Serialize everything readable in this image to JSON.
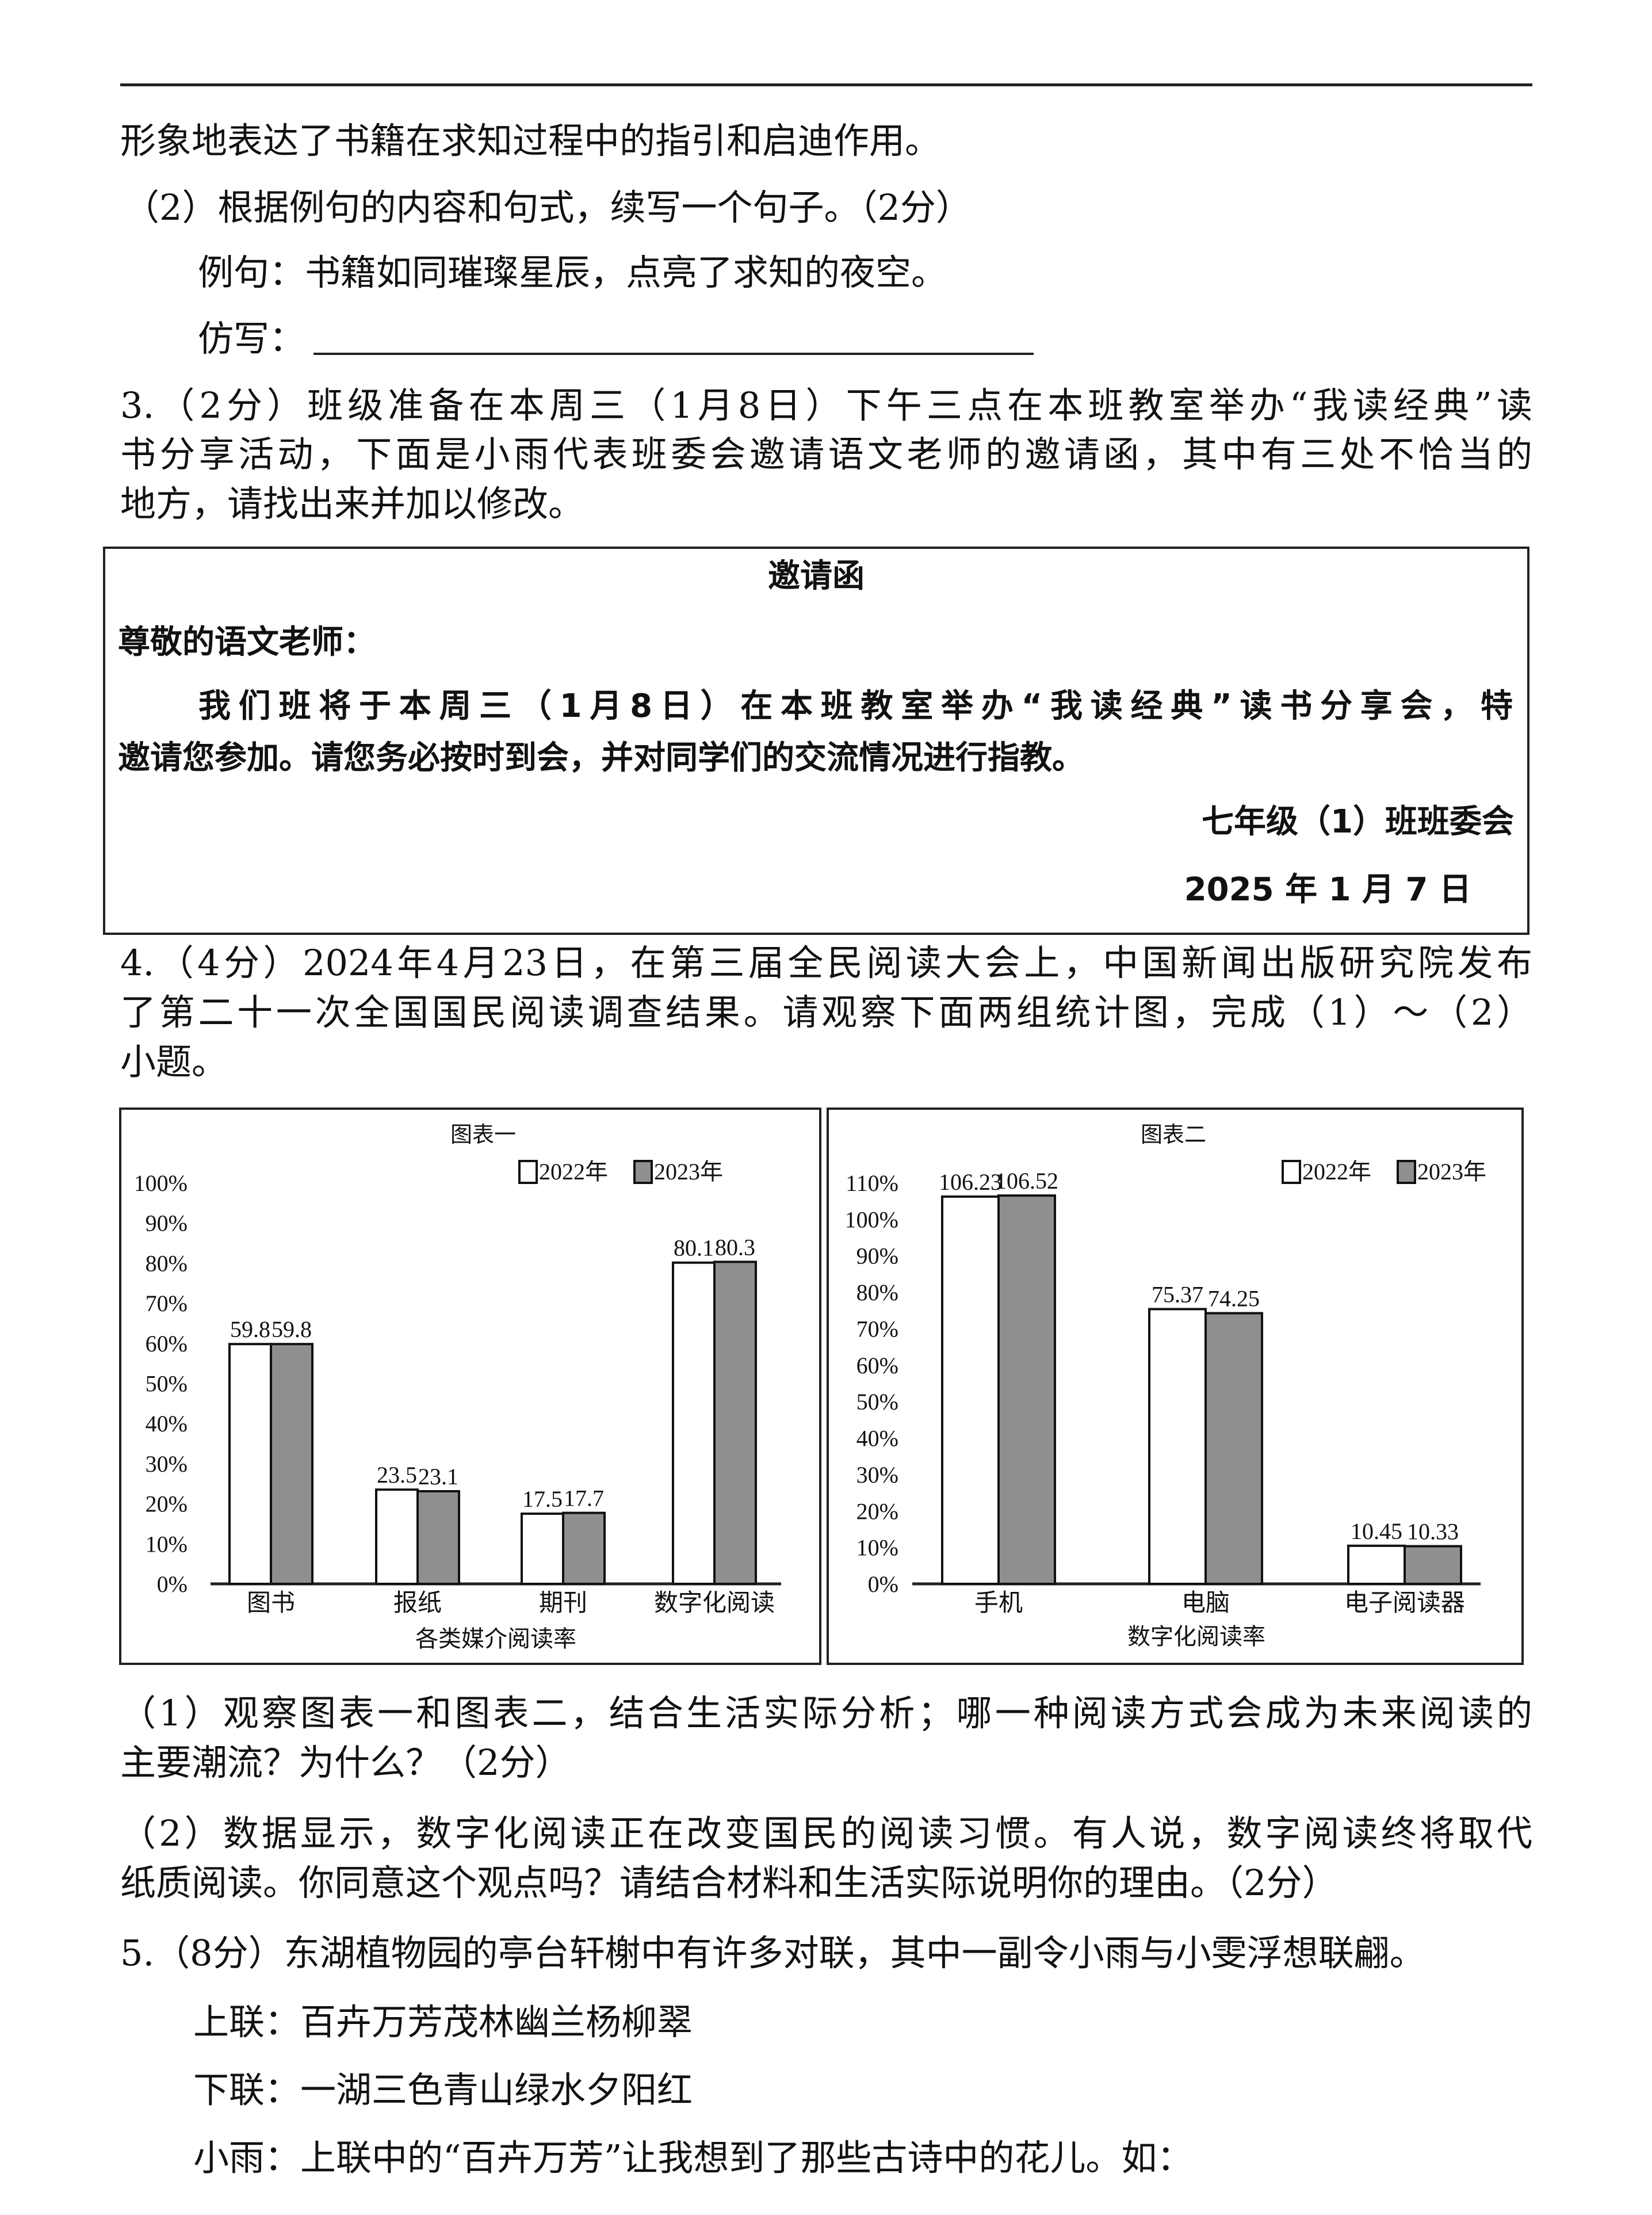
{
  "lines": {
    "l1": "形象地表达了书籍在求知过程中的指引和启迪作用。",
    "q2_2": "（2）根据例句的内容和句式，续写一个句子。（2分）",
    "example": "例句：书籍如同璀璨星辰，点亮了求知的夜空。",
    "imitate_label": "仿写：",
    "q3_a": "3.（2分）班级准备在本周三（1月8日）下午三点在本班教室举办“我读经典”读",
    "q3_b": "书分享活动，下面是小雨代表班委会邀请语文老师的邀请函，其中有三处不恰当的",
    "q3_c": "地方，请找出来并加以修改。",
    "q4_a": "4.（4分）2024年4月23日，在第三届全民阅读大会上，中国新闻出版研究院发布",
    "q4_b": "了第二十一次全国国民阅读调查结果。请观察下面两组统计图，完成（1）～（2）",
    "q4_c": "小题。",
    "q4_1a": "（1）观察图表一和图表二，结合生活实际分析；哪一种阅读方式会成为未来阅读的",
    "q4_1b": "主要潮流？为什么？（2分）",
    "q4_2a": "（2）数据显示，数字化阅读正在改变国民的阅读习惯。有人说，数字阅读终将取代",
    "q4_2b": "纸质阅读。你同意这个观点吗？请结合材料和生活实际说明你的理由。（2分）",
    "q5": "5.（8分）东湖植物园的亭台轩榭中有许多对联，其中一副令小雨与小雯浮想联翩。",
    "upper": "上联：百卉万芳茂林幽兰杨柳翠",
    "lower": "下联：一湖三色青山绿水夕阳红",
    "xiaoyu": "小雨：上联中的“百卉万芳”让我想到了那些古诗中的花儿。如："
  },
  "invitation": {
    "title": "邀请函",
    "greeting": "尊敬的语文老师：",
    "body_a": "我们班将于本周三（1月8日）在本班教室举办“我读经典”读书分享会，特",
    "body_b": "邀请您参加。请您务必按时到会，并对同学们的交流情况进行指教。",
    "signer": "七年级（1）班班委会",
    "date": "2025 年 1 月 7 日"
  },
  "chart_data": [
    {
      "type": "bar",
      "title": "图表一",
      "xlabel": "各类媒介阅读率",
      "categories": [
        "图书",
        "报纸",
        "期刊",
        "数字化阅读"
      ],
      "yticks": [
        "0%",
        "10%",
        "20%",
        "30%",
        "40%",
        "50%",
        "60%",
        "70%",
        "80%",
        "90%",
        "100%"
      ],
      "ylim": [
        0,
        100
      ],
      "legend": "top-right",
      "series": [
        {
          "name": "2022年",
          "color": "#ffffff",
          "values": [
            59.8,
            23.5,
            17.5,
            80.1
          ],
          "labels": [
            "59.8",
            "23.5",
            "17.5",
            "80.1"
          ]
        },
        {
          "name": "2023年",
          "color": "#8f8f8f",
          "values": [
            59.8,
            23.1,
            17.7,
            80.3
          ],
          "labels": [
            "59.8",
            "23.1",
            "17.7",
            "80.3"
          ]
        }
      ]
    },
    {
      "type": "bar",
      "title": "图表二",
      "xlabel": "数字化阅读率",
      "categories": [
        "手机",
        "电脑",
        "电子阅读器"
      ],
      "yticks": [
        "0%",
        "10%",
        "20%",
        "30%",
        "40%",
        "50%",
        "60%",
        "70%",
        "80%",
        "90%",
        "100%",
        "110%"
      ],
      "ylim": [
        0,
        110
      ],
      "legend": "top-right",
      "series": [
        {
          "name": "2022年",
          "color": "#ffffff",
          "values": [
            106.23,
            75.37,
            10.45
          ],
          "labels": [
            "106.23",
            "75.37",
            "10.45"
          ]
        },
        {
          "name": "2023年",
          "color": "#8f8f8f",
          "values": [
            106.52,
            74.25,
            10.33
          ],
          "labels": [
            "106.52",
            "74.25",
            "10.33"
          ]
        }
      ]
    }
  ]
}
